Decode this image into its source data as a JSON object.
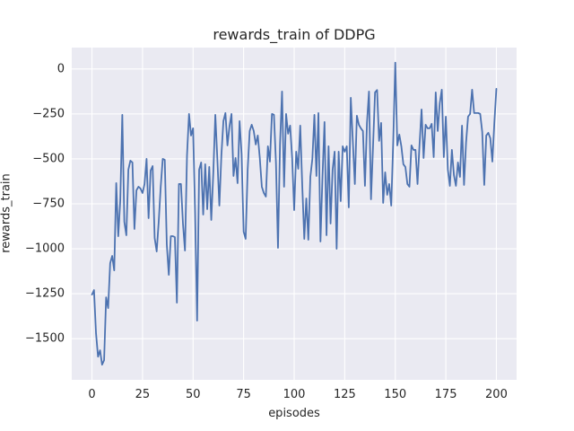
{
  "chart_data": {
    "type": "line",
    "title": "rewards_train of DDPG",
    "xlabel": "episodes",
    "ylabel": "rewards_train",
    "x_ticks": [
      0,
      25,
      50,
      75,
      100,
      125,
      150,
      175,
      200
    ],
    "x_tick_labels": [
      "0",
      "25",
      "50",
      "75",
      "100",
      "125",
      "150",
      "175",
      "200"
    ],
    "y_ticks": [
      0,
      -250,
      -500,
      -750,
      -1000,
      -1250,
      -1500
    ],
    "y_tick_labels": [
      "0",
      "−250",
      "−500",
      "−750",
      "−1000",
      "−1250",
      "−1500"
    ],
    "xlim": [
      -10,
      210
    ],
    "ylim": [
      -1729,
      119
    ],
    "grid": true,
    "legend": false,
    "line_color": "#4c72b0",
    "axes_background": "#eaeaf2",
    "grid_color": "#ffffff",
    "text_color": "#262626",
    "series": [
      {
        "name": "rewards_train",
        "x_start": 0,
        "x_step": 1,
        "y": [
          -1255,
          -1230,
          -1470,
          -1600,
          -1565,
          -1645,
          -1620,
          -1270,
          -1330,
          -1080,
          -1040,
          -1120,
          -635,
          -930,
          -730,
          -255,
          -850,
          -925,
          -560,
          -510,
          -520,
          -890,
          -675,
          -655,
          -665,
          -690,
          -640,
          -500,
          -830,
          -565,
          -540,
          -940,
          -1015,
          -850,
          -655,
          -500,
          -505,
          -975,
          -1145,
          -930,
          -930,
          -935,
          -1300,
          -640,
          -640,
          -860,
          -1010,
          -480,
          -250,
          -370,
          -330,
          -800,
          -1400,
          -560,
          -520,
          -810,
          -530,
          -780,
          -545,
          -840,
          -580,
          -255,
          -500,
          -760,
          -480,
          -290,
          -245,
          -425,
          -320,
          -250,
          -595,
          -495,
          -635,
          -290,
          -475,
          -905,
          -945,
          -560,
          -345,
          -310,
          -345,
          -420,
          -370,
          -495,
          -655,
          -690,
          -710,
          -430,
          -515,
          -250,
          -255,
          -525,
          -995,
          -420,
          -125,
          -655,
          -250,
          -360,
          -315,
          -495,
          -785,
          -460,
          -555,
          -315,
          -650,
          -945,
          -720,
          -950,
          -600,
          -500,
          -255,
          -595,
          -245,
          -960,
          -600,
          -295,
          -925,
          -430,
          -860,
          -560,
          -460,
          -1000,
          -460,
          -735,
          -430,
          -460,
          -430,
          -770,
          -160,
          -400,
          -640,
          -260,
          -310,
          -330,
          -345,
          -650,
          -300,
          -125,
          -725,
          -430,
          -130,
          -117,
          -400,
          -300,
          -745,
          -575,
          -700,
          -640,
          -760,
          -400,
          35,
          -425,
          -365,
          -430,
          -530,
          -545,
          -640,
          -655,
          -425,
          -450,
          -450,
          -640,
          -420,
          -225,
          -495,
          -310,
          -330,
          -330,
          -305,
          -490,
          -130,
          -345,
          -190,
          -115,
          -490,
          -265,
          -560,
          -650,
          -450,
          -590,
          -650,
          -520,
          -600,
          -315,
          -645,
          -410,
          -265,
          -250,
          -115,
          -245,
          -245,
          -245,
          -250,
          -350,
          -645,
          -370,
          -355,
          -385,
          -515,
          -300,
          -110
        ]
      }
    ]
  }
}
